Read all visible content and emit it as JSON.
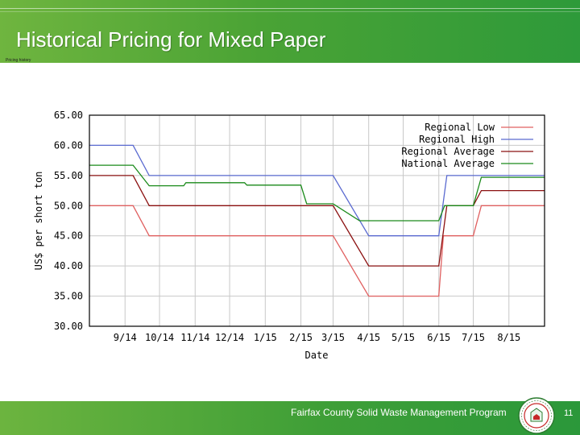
{
  "slide": {
    "title": "Historical Pricing for Mixed Paper",
    "subtitle": "Pricing history",
    "footer_text": "Fairfax County Solid Waste Management Program",
    "page_number": "11"
  },
  "colors": {
    "regional_low": "#e06060",
    "regional_high": "#5a6ad0",
    "regional_average": "#8b1010",
    "national_average": "#1a8a1a",
    "header_green": "#4aa335"
  },
  "chart_data": {
    "type": "line",
    "title": "",
    "xlabel": "Date",
    "ylabel": "US$ per short ton",
    "ylim": [
      30,
      65
    ],
    "xlim": [
      "2014-08-01",
      "2015-09-01"
    ],
    "y_ticks": [
      "30.00",
      "35.00",
      "40.00",
      "45.00",
      "50.00",
      "55.00",
      "60.00",
      "65.00"
    ],
    "y_tick_values": [
      30,
      35,
      40,
      45,
      50,
      55,
      60,
      65
    ],
    "x_ticks": [
      "9/14",
      "10/14",
      "11/14",
      "12/14",
      "1/15",
      "2/15",
      "3/15",
      "4/15",
      "5/15",
      "6/15",
      "7/15",
      "8/15"
    ],
    "x_tick_dates": [
      "2014-09-01",
      "2014-10-01",
      "2014-11-01",
      "2014-12-01",
      "2015-01-01",
      "2015-02-01",
      "2015-03-01",
      "2015-04-01",
      "2015-05-01",
      "2015-06-01",
      "2015-07-01",
      "2015-08-01"
    ],
    "grid": true,
    "legend_position": "top-right",
    "series": [
      {
        "name": "Regional Low",
        "color": "#e06060",
        "points": [
          [
            "2014-08-01",
            50
          ],
          [
            "2014-09-08",
            50
          ],
          [
            "2014-09-22",
            45
          ],
          [
            "2015-03-01",
            45
          ],
          [
            "2015-04-01",
            35
          ],
          [
            "2015-06-01",
            35
          ],
          [
            "2015-06-05",
            45
          ],
          [
            "2015-07-01",
            45
          ],
          [
            "2015-07-08",
            50
          ],
          [
            "2015-09-01",
            50
          ]
        ]
      },
      {
        "name": "Regional High",
        "color": "#5a6ad0",
        "points": [
          [
            "2014-08-01",
            60
          ],
          [
            "2014-09-08",
            60
          ],
          [
            "2014-09-22",
            55
          ],
          [
            "2015-03-01",
            55
          ],
          [
            "2015-04-01",
            45
          ],
          [
            "2015-06-01",
            45
          ],
          [
            "2015-06-08",
            55
          ],
          [
            "2015-09-01",
            55
          ]
        ]
      },
      {
        "name": "Regional Average",
        "color": "#8b1010",
        "points": [
          [
            "2014-08-01",
            55
          ],
          [
            "2014-09-08",
            55
          ],
          [
            "2014-09-22",
            50
          ],
          [
            "2015-03-01",
            50
          ],
          [
            "2015-04-01",
            40
          ],
          [
            "2015-06-01",
            40
          ],
          [
            "2015-06-08",
            50
          ],
          [
            "2015-07-01",
            50
          ],
          [
            "2015-07-08",
            52.5
          ],
          [
            "2015-09-01",
            52.5
          ]
        ]
      },
      {
        "name": "National Average",
        "color": "#1a8a1a",
        "points": [
          [
            "2014-08-01",
            56.7
          ],
          [
            "2014-09-08",
            56.7
          ],
          [
            "2014-09-22",
            53.3
          ],
          [
            "2014-10-22",
            53.3
          ],
          [
            "2014-10-24",
            53.8
          ],
          [
            "2014-12-14",
            53.8
          ],
          [
            "2014-12-16",
            53.4
          ],
          [
            "2015-02-01",
            53.4
          ],
          [
            "2015-02-06",
            50.3
          ],
          [
            "2015-03-01",
            50.3
          ],
          [
            "2015-03-24",
            47.5
          ],
          [
            "2015-06-01",
            47.5
          ],
          [
            "2015-06-06",
            50
          ],
          [
            "2015-07-01",
            50
          ],
          [
            "2015-07-08",
            54.7
          ],
          [
            "2015-09-01",
            54.7
          ]
        ]
      }
    ]
  }
}
